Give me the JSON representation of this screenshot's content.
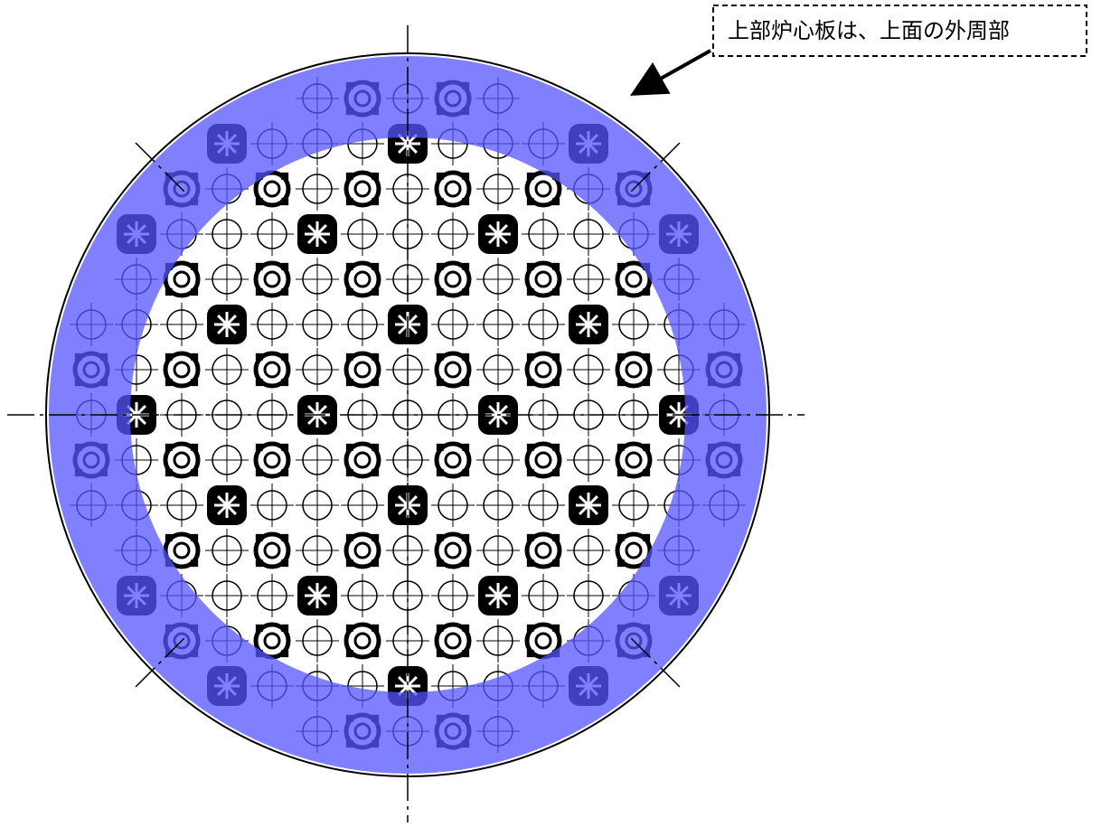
{
  "callout": {
    "label": "上部炉心板は、上面の外周部"
  }
}
